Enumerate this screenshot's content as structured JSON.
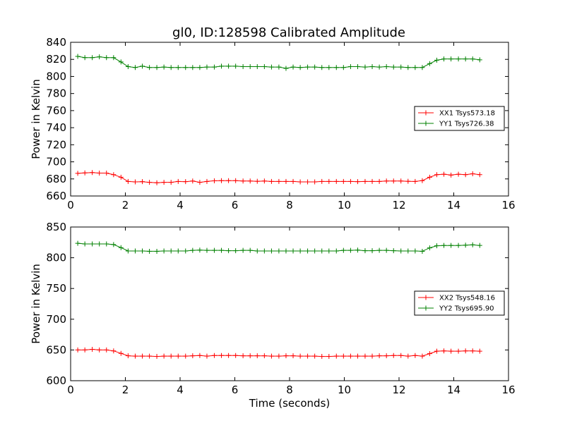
{
  "figure_title": "gl0, ID:128598 Calibrated Amplitude",
  "chart_data": [
    {
      "type": "line",
      "title": "gl0, ID:128598 Calibrated Amplitude",
      "xlabel": "",
      "ylabel": "Power in Kelvin",
      "xlim": [
        0,
        16
      ],
      "ylim": [
        660,
        840
      ],
      "xticks": [
        "0",
        "2",
        "4",
        "6",
        "8",
        "10",
        "12",
        "14",
        "16"
      ],
      "yticks": [
        "660",
        "680",
        "700",
        "720",
        "740",
        "760",
        "780",
        "800",
        "820",
        "840"
      ],
      "legend_position": "center-right",
      "x": [
        0.26,
        0.52,
        0.79,
        1.05,
        1.31,
        1.57,
        1.84,
        2.1,
        2.36,
        2.62,
        2.88,
        3.15,
        3.41,
        3.67,
        3.93,
        4.2,
        4.46,
        4.72,
        4.98,
        5.25,
        5.51,
        5.77,
        6.03,
        6.3,
        6.56,
        6.82,
        7.08,
        7.34,
        7.61,
        7.87,
        8.13,
        8.39,
        8.66,
        8.92,
        9.18,
        9.44,
        9.71,
        9.97,
        10.23,
        10.49,
        10.76,
        11.02,
        11.28,
        11.54,
        11.8,
        12.07,
        12.33,
        12.59,
        12.85,
        13.12,
        13.38,
        13.64,
        13.9,
        14.17,
        14.43,
        14.69,
        14.95
      ],
      "series": [
        {
          "name": "XX1 Tsys573.18",
          "color": "#ff0000",
          "values": [
            686.5,
            687.0,
            687.5,
            686.8,
            686.8,
            685.0,
            682.0,
            677.0,
            676.5,
            676.8,
            676.0,
            675.5,
            676.0,
            676.0,
            677.0,
            676.8,
            677.5,
            676.0,
            677.0,
            677.8,
            678.0,
            678.0,
            678.0,
            677.5,
            677.5,
            677.2,
            677.5,
            677.0,
            677.0,
            677.0,
            677.0,
            676.5,
            676.5,
            676.5,
            677.0,
            677.0,
            677.0,
            677.0,
            677.0,
            676.8,
            677.0,
            677.0,
            677.0,
            677.5,
            677.5,
            677.5,
            677.2,
            677.0,
            678.0,
            682.0,
            685.0,
            685.5,
            684.5,
            685.5,
            685.0,
            686.0,
            685.0
          ]
        },
        {
          "name": "YY1 Tsys726.38",
          "color": "#008000",
          "values": [
            823.5,
            822.0,
            822.0,
            823.0,
            822.0,
            822.0,
            817.0,
            811.5,
            810.5,
            812.0,
            810.5,
            810.5,
            811.0,
            810.5,
            810.5,
            810.5,
            810.5,
            810.5,
            811.0,
            811.0,
            812.0,
            812.0,
            812.0,
            811.5,
            811.5,
            811.5,
            811.5,
            811.0,
            811.0,
            809.5,
            811.0,
            810.5,
            811.0,
            811.0,
            810.5,
            810.5,
            810.5,
            810.5,
            811.5,
            811.5,
            811.0,
            811.5,
            811.0,
            811.5,
            811.0,
            811.0,
            810.5,
            810.5,
            810.5,
            815.0,
            819.0,
            820.5,
            820.5,
            820.5,
            820.5,
            820.5,
            819.5
          ]
        }
      ]
    },
    {
      "type": "line",
      "title": "",
      "xlabel": "Time (seconds)",
      "ylabel": "Power in Kelvin",
      "xlim": [
        0,
        16
      ],
      "ylim": [
        600,
        850
      ],
      "xticks": [
        "0",
        "2",
        "4",
        "6",
        "8",
        "10",
        "12",
        "14",
        "16"
      ],
      "yticks": [
        "600",
        "650",
        "700",
        "750",
        "800",
        "850"
      ],
      "legend_position": "center-right",
      "x": [
        0.26,
        0.52,
        0.79,
        1.05,
        1.31,
        1.57,
        1.84,
        2.1,
        2.36,
        2.62,
        2.88,
        3.15,
        3.41,
        3.67,
        3.93,
        4.2,
        4.46,
        4.72,
        4.98,
        5.25,
        5.51,
        5.77,
        6.03,
        6.3,
        6.56,
        6.82,
        7.08,
        7.34,
        7.61,
        7.87,
        8.13,
        8.39,
        8.66,
        8.92,
        9.18,
        9.44,
        9.71,
        9.97,
        10.23,
        10.49,
        10.76,
        11.02,
        11.28,
        11.54,
        11.8,
        12.07,
        12.33,
        12.59,
        12.85,
        13.12,
        13.38,
        13.64,
        13.9,
        14.17,
        14.43,
        14.69,
        14.95
      ],
      "series": [
        {
          "name": "XX2 Tsys548.16",
          "color": "#ff0000",
          "values": [
            650.0,
            650.0,
            651.0,
            650.0,
            650.0,
            648.5,
            644.5,
            640.5,
            640.0,
            640.0,
            640.0,
            639.5,
            640.0,
            640.0,
            640.0,
            640.0,
            640.5,
            641.0,
            640.0,
            641.0,
            641.0,
            641.0,
            641.0,
            640.5,
            640.5,
            640.5,
            640.5,
            640.0,
            640.0,
            640.5,
            640.5,
            640.0,
            640.0,
            640.0,
            639.5,
            639.5,
            640.0,
            640.0,
            640.0,
            640.0,
            640.0,
            640.0,
            640.5,
            640.5,
            641.0,
            641.0,
            640.0,
            641.0,
            640.0,
            644.0,
            648.0,
            648.5,
            648.0,
            648.0,
            648.5,
            648.5,
            648.0
          ]
        },
        {
          "name": "YY2 Tsys695.90",
          "color": "#008000",
          "values": [
            823.5,
            822.5,
            822.5,
            822.5,
            822.5,
            821.5,
            816.5,
            811.0,
            811.0,
            811.0,
            810.5,
            810.5,
            811.0,
            811.0,
            811.0,
            811.0,
            812.0,
            812.5,
            812.0,
            812.0,
            812.0,
            811.5,
            811.5,
            812.0,
            812.0,
            811.0,
            811.0,
            811.0,
            811.0,
            811.0,
            811.0,
            811.0,
            811.0,
            811.0,
            811.0,
            811.0,
            811.0,
            812.0,
            812.0,
            812.5,
            811.5,
            811.5,
            812.0,
            812.0,
            811.5,
            811.0,
            811.0,
            811.0,
            810.5,
            816.0,
            819.5,
            820.0,
            820.0,
            820.0,
            820.5,
            821.0,
            820.0
          ]
        }
      ]
    }
  ]
}
